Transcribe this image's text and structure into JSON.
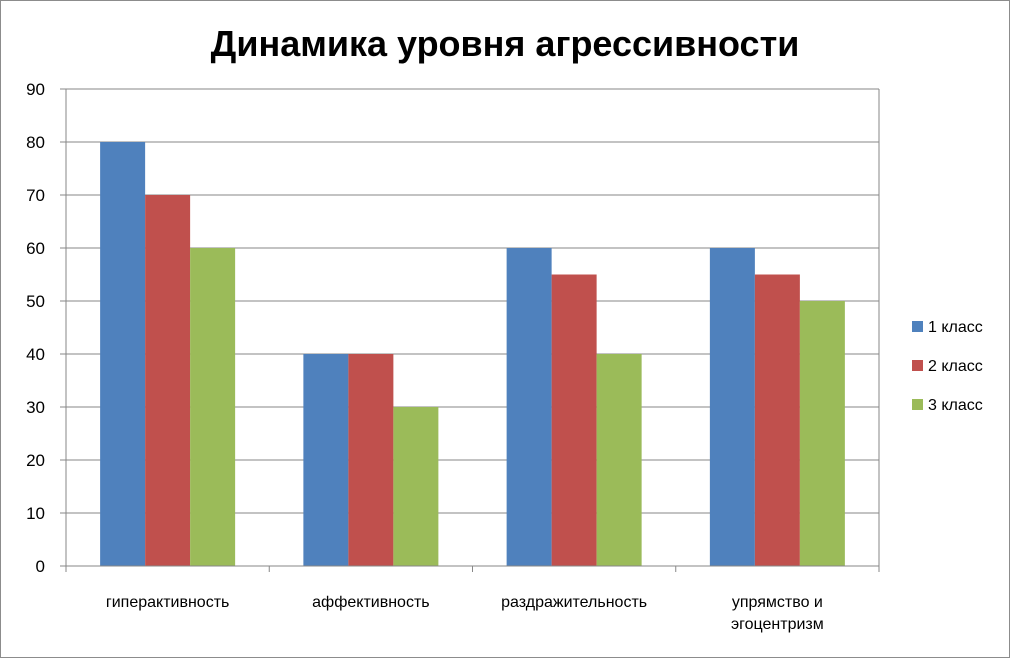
{
  "chart_data": {
    "type": "bar",
    "title": "Динамика уровня агрессивности",
    "categories": [
      [
        "гиперактивность"
      ],
      [
        "аффективность"
      ],
      [
        "раздражительность"
      ],
      [
        "упрямство и",
        "эгоцентризм"
      ]
    ],
    "series": [
      {
        "name": "1 класс",
        "color": "#4f81bd",
        "values": [
          80,
          40,
          60,
          60
        ]
      },
      {
        "name": "2 класс",
        "color": "#c0504d",
        "values": [
          70,
          40,
          55,
          55
        ]
      },
      {
        "name": "3 класс",
        "color": "#9bbb59",
        "values": [
          60,
          30,
          40,
          50
        ]
      }
    ],
    "ylim": [
      0,
      90
    ],
    "yticks": [
      0,
      10,
      20,
      30,
      40,
      50,
      60,
      70,
      80,
      90
    ],
    "grid": true,
    "legend_position": "right"
  }
}
